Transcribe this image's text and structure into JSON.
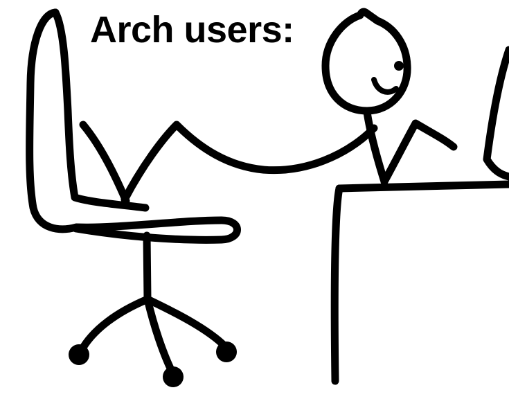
{
  "meme": {
    "caption": "Arch users:",
    "ink_color": "#000000",
    "background_color": "#ffffff"
  }
}
